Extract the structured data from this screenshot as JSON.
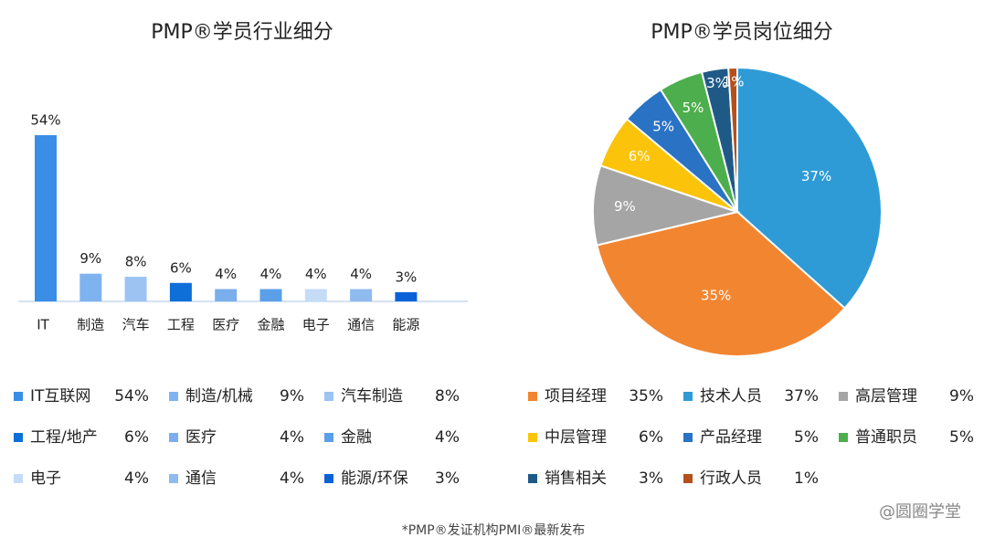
{
  "charts": [
    {
      "type": "bar",
      "title": "PMP®学员行业细分",
      "categories": [
        "IT",
        "制造",
        "汽车",
        "工程",
        "医疗",
        "金融",
        "电子",
        "通信",
        "能源"
      ],
      "values": [
        54,
        9,
        8,
        6,
        4,
        4,
        4,
        4,
        3
      ],
      "value_labels": [
        "54%",
        "9%",
        "8%",
        "6%",
        "4%",
        "4%",
        "4%",
        "4%",
        "3%"
      ],
      "colors": [
        "#3a8ee6",
        "#7fb3ef",
        "#9cc3f2",
        "#0f6fd9",
        "#7aaeec",
        "#5a9fe8",
        "#c5dcf7",
        "#8fbbef",
        "#0a62d6"
      ],
      "ylim": [
        0,
        54
      ],
      "legend": [
        {
          "name": "IT互联网",
          "label": "54%",
          "color": "#3a8ee6"
        },
        {
          "name": "制造/机械",
          "label": "9%",
          "color": "#7fb3ef"
        },
        {
          "name": "汽车制造",
          "label": "8%",
          "color": "#9cc3f2"
        },
        {
          "name": "工程/地产",
          "label": "6%",
          "color": "#0f6fd9"
        },
        {
          "name": "医疗",
          "label": "4%",
          "color": "#7aaeec"
        },
        {
          "name": "金融",
          "label": "4%",
          "color": "#5a9fe8"
        },
        {
          "name": "电子",
          "label": "4%",
          "color": "#c5dcf7"
        },
        {
          "name": "通信",
          "label": "4%",
          "color": "#8fbbef"
        },
        {
          "name": "能源/环保",
          "label": "3%",
          "color": "#0a62d6"
        }
      ]
    },
    {
      "type": "pie",
      "title": "PMP®学员岗位细分",
      "values": [
        37,
        35,
        9,
        6,
        5,
        5,
        3,
        1
      ],
      "value_labels": [
        "37%",
        "35%",
        "9%",
        "6%",
        "5%",
        "5%",
        "3%",
        "1%"
      ],
      "colors": [
        "#2e9bd6",
        "#f28530",
        "#a5a5a5",
        "#fbc40a",
        "#2a72c4",
        "#4cae4c",
        "#1f5a87",
        "#b5501c"
      ],
      "legend": [
        {
          "name": "项目经理",
          "label": "35%",
          "color": "#f28530"
        },
        {
          "name": "技术人员",
          "label": "37%",
          "color": "#2e9bd6"
        },
        {
          "name": "高层管理",
          "label": "9%",
          "color": "#a5a5a5"
        },
        {
          "name": "中层管理",
          "label": "6%",
          "color": "#fbc40a"
        },
        {
          "name": "产品经理",
          "label": "5%",
          "color": "#2a72c4"
        },
        {
          "name": "普通职员",
          "label": "5%",
          "color": "#4cae4c"
        },
        {
          "name": "销售相关",
          "label": "3%",
          "color": "#1f5a87"
        },
        {
          "name": "行政人员",
          "label": "1%",
          "color": "#b5501c"
        }
      ]
    }
  ],
  "footnote": "*PMP®发证机构PMI®最新发布",
  "watermark": "@圆圈学堂"
}
